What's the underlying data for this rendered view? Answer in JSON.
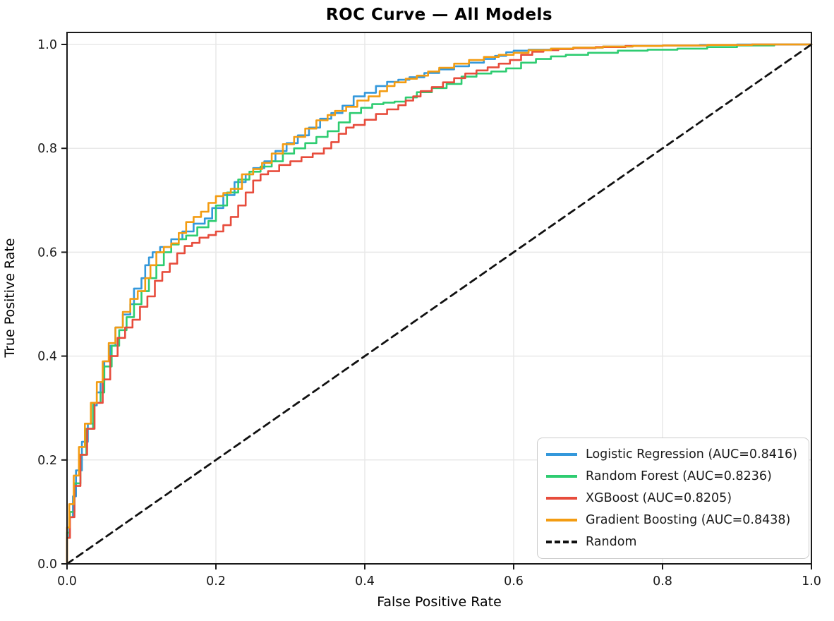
{
  "chart_data": {
    "type": "line",
    "title": "ROC Curve — All Models",
    "xlabel": "False Positive Rate",
    "ylabel": "True Positive Rate",
    "xlim": [
      0,
      1.0
    ],
    "ylim": [
      0,
      1.023
    ],
    "xtick_values": [
      0,
      0.2,
      0.4,
      0.6,
      0.8,
      1.0
    ],
    "ytick_values": [
      0,
      0.2,
      0.4,
      0.6,
      0.8,
      1.0
    ],
    "xtick_labels": [
      "0.0",
      "0.2",
      "0.4",
      "0.6",
      "0.8",
      "1.0"
    ],
    "ytick_labels": [
      "0.0",
      "0.2",
      "0.4",
      "0.6",
      "0.8",
      "1.0"
    ],
    "grid": true,
    "legend_position": "lower right",
    "series": [
      {
        "name": "Logistic Regression",
        "auc": 0.8416,
        "label": "Logistic Regression (AUC=0.8416)",
        "color": "#3498db",
        "style": "solid",
        "points": [
          [
            0,
            0
          ],
          [
            0.003,
            0.05
          ],
          [
            0.008,
            0.09
          ],
          [
            0.012,
            0.13
          ],
          [
            0.02,
            0.18
          ],
          [
            0.028,
            0.235
          ],
          [
            0.035,
            0.27
          ],
          [
            0.04,
            0.305
          ],
          [
            0.045,
            0.33
          ],
          [
            0.05,
            0.35
          ],
          [
            0.058,
            0.39
          ],
          [
            0.065,
            0.42
          ],
          [
            0.075,
            0.455
          ],
          [
            0.085,
            0.48
          ],
          [
            0.09,
            0.5
          ],
          [
            0.1,
            0.53
          ],
          [
            0.105,
            0.55
          ],
          [
            0.11,
            0.575
          ],
          [
            0.115,
            0.59
          ],
          [
            0.125,
            0.6
          ],
          [
            0.14,
            0.61
          ],
          [
            0.155,
            0.625
          ],
          [
            0.17,
            0.64
          ],
          [
            0.185,
            0.655
          ],
          [
            0.195,
            0.665
          ],
          [
            0.21,
            0.685
          ],
          [
            0.225,
            0.71
          ],
          [
            0.24,
            0.735
          ],
          [
            0.25,
            0.75
          ],
          [
            0.265,
            0.762
          ],
          [
            0.28,
            0.775
          ],
          [
            0.295,
            0.795
          ],
          [
            0.31,
            0.81
          ],
          [
            0.325,
            0.825
          ],
          [
            0.34,
            0.84
          ],
          [
            0.355,
            0.857
          ],
          [
            0.37,
            0.868
          ],
          [
            0.385,
            0.882
          ],
          [
            0.4,
            0.9
          ],
          [
            0.415,
            0.907
          ],
          [
            0.43,
            0.92
          ],
          [
            0.445,
            0.928
          ],
          [
            0.46,
            0.932
          ],
          [
            0.48,
            0.937
          ],
          [
            0.5,
            0.945
          ],
          [
            0.52,
            0.952
          ],
          [
            0.54,
            0.958
          ],
          [
            0.56,
            0.965
          ],
          [
            0.575,
            0.972
          ],
          [
            0.59,
            0.978
          ],
          [
            0.6,
            0.985
          ],
          [
            0.62,
            0.988
          ],
          [
            0.65,
            0.99
          ],
          [
            0.68,
            0.992
          ],
          [
            0.72,
            0.994
          ],
          [
            0.76,
            0.996
          ],
          [
            0.8,
            0.997
          ],
          [
            0.85,
            0.998
          ],
          [
            0.9,
            0.999
          ],
          [
            0.93,
            1.0
          ],
          [
            1.0,
            1.0
          ]
        ]
      },
      {
        "name": "Random Forest",
        "auc": 0.8236,
        "label": "Random Forest (AUC=0.8236)",
        "color": "#2ecc71",
        "style": "solid",
        "points": [
          [
            0,
            0
          ],
          [
            0.004,
            0.06
          ],
          [
            0.01,
            0.1
          ],
          [
            0.018,
            0.155
          ],
          [
            0.026,
            0.21
          ],
          [
            0.035,
            0.26
          ],
          [
            0.045,
            0.31
          ],
          [
            0.05,
            0.33
          ],
          [
            0.06,
            0.38
          ],
          [
            0.07,
            0.42
          ],
          [
            0.08,
            0.45
          ],
          [
            0.09,
            0.475
          ],
          [
            0.1,
            0.5
          ],
          [
            0.11,
            0.525
          ],
          [
            0.12,
            0.55
          ],
          [
            0.13,
            0.575
          ],
          [
            0.14,
            0.6
          ],
          [
            0.15,
            0.615
          ],
          [
            0.16,
            0.625
          ],
          [
            0.175,
            0.632
          ],
          [
            0.19,
            0.648
          ],
          [
            0.2,
            0.66
          ],
          [
            0.215,
            0.69
          ],
          [
            0.23,
            0.715
          ],
          [
            0.245,
            0.74
          ],
          [
            0.26,
            0.755
          ],
          [
            0.275,
            0.765
          ],
          [
            0.29,
            0.775
          ],
          [
            0.305,
            0.79
          ],
          [
            0.32,
            0.8
          ],
          [
            0.335,
            0.81
          ],
          [
            0.35,
            0.822
          ],
          [
            0.365,
            0.833
          ],
          [
            0.38,
            0.85
          ],
          [
            0.395,
            0.868
          ],
          [
            0.41,
            0.878
          ],
          [
            0.425,
            0.885
          ],
          [
            0.44,
            0.888
          ],
          [
            0.455,
            0.89
          ],
          [
            0.47,
            0.898
          ],
          [
            0.49,
            0.908
          ],
          [
            0.51,
            0.916
          ],
          [
            0.53,
            0.924
          ],
          [
            0.55,
            0.938
          ],
          [
            0.57,
            0.944
          ],
          [
            0.59,
            0.948
          ],
          [
            0.61,
            0.954
          ],
          [
            0.63,
            0.965
          ],
          [
            0.65,
            0.972
          ],
          [
            0.67,
            0.977
          ],
          [
            0.7,
            0.98
          ],
          [
            0.74,
            0.984
          ],
          [
            0.78,
            0.988
          ],
          [
            0.82,
            0.99
          ],
          [
            0.86,
            0.992
          ],
          [
            0.9,
            0.995
          ],
          [
            0.95,
            0.998
          ],
          [
            1.0,
            1.0
          ]
        ]
      },
      {
        "name": "XGBoost",
        "auc": 0.8205,
        "label": "XGBoost (AUC=0.8205)",
        "color": "#e74c3c",
        "style": "solid",
        "points": [
          [
            0,
            0
          ],
          [
            0.004,
            0.05
          ],
          [
            0.01,
            0.09
          ],
          [
            0.018,
            0.15
          ],
          [
            0.027,
            0.21
          ],
          [
            0.037,
            0.26
          ],
          [
            0.048,
            0.31
          ],
          [
            0.058,
            0.355
          ],
          [
            0.068,
            0.4
          ],
          [
            0.078,
            0.435
          ],
          [
            0.088,
            0.455
          ],
          [
            0.098,
            0.47
          ],
          [
            0.108,
            0.495
          ],
          [
            0.118,
            0.515
          ],
          [
            0.128,
            0.545
          ],
          [
            0.138,
            0.562
          ],
          [
            0.148,
            0.578
          ],
          [
            0.158,
            0.598
          ],
          [
            0.168,
            0.612
          ],
          [
            0.178,
            0.618
          ],
          [
            0.19,
            0.628
          ],
          [
            0.2,
            0.633
          ],
          [
            0.21,
            0.64
          ],
          [
            0.22,
            0.652
          ],
          [
            0.23,
            0.668
          ],
          [
            0.24,
            0.69
          ],
          [
            0.25,
            0.715
          ],
          [
            0.26,
            0.738
          ],
          [
            0.27,
            0.75
          ],
          [
            0.285,
            0.756
          ],
          [
            0.3,
            0.768
          ],
          [
            0.315,
            0.775
          ],
          [
            0.33,
            0.783
          ],
          [
            0.345,
            0.79
          ],
          [
            0.355,
            0.8
          ],
          [
            0.365,
            0.812
          ],
          [
            0.375,
            0.828
          ],
          [
            0.385,
            0.84
          ],
          [
            0.4,
            0.845
          ],
          [
            0.415,
            0.855
          ],
          [
            0.43,
            0.866
          ],
          [
            0.445,
            0.875
          ],
          [
            0.455,
            0.883
          ],
          [
            0.465,
            0.892
          ],
          [
            0.475,
            0.9
          ],
          [
            0.49,
            0.91
          ],
          [
            0.505,
            0.918
          ],
          [
            0.52,
            0.927
          ],
          [
            0.535,
            0.935
          ],
          [
            0.55,
            0.944
          ],
          [
            0.565,
            0.95
          ],
          [
            0.58,
            0.956
          ],
          [
            0.595,
            0.963
          ],
          [
            0.61,
            0.97
          ],
          [
            0.625,
            0.98
          ],
          [
            0.64,
            0.986
          ],
          [
            0.66,
            0.989
          ],
          [
            0.68,
            0.991
          ],
          [
            0.71,
            0.993
          ],
          [
            0.75,
            0.995
          ],
          [
            0.8,
            0.997
          ],
          [
            0.86,
            0.998
          ],
          [
            0.92,
            0.999
          ],
          [
            1.0,
            1.0
          ]
        ]
      },
      {
        "name": "Gradient Boosting",
        "auc": 0.8438,
        "label": "Gradient Boosting (AUC=0.8438)",
        "color": "#f39c12",
        "style": "solid",
        "points": [
          [
            0,
            0
          ],
          [
            0.003,
            0.07
          ],
          [
            0.009,
            0.115
          ],
          [
            0.016,
            0.17
          ],
          [
            0.024,
            0.225
          ],
          [
            0.032,
            0.27
          ],
          [
            0.04,
            0.31
          ],
          [
            0.048,
            0.35
          ],
          [
            0.056,
            0.39
          ],
          [
            0.065,
            0.425
          ],
          [
            0.075,
            0.455
          ],
          [
            0.085,
            0.485
          ],
          [
            0.095,
            0.51
          ],
          [
            0.105,
            0.525
          ],
          [
            0.112,
            0.55
          ],
          [
            0.12,
            0.575
          ],
          [
            0.13,
            0.6
          ],
          [
            0.14,
            0.61
          ],
          [
            0.15,
            0.617
          ],
          [
            0.16,
            0.637
          ],
          [
            0.17,
            0.658
          ],
          [
            0.18,
            0.668
          ],
          [
            0.19,
            0.678
          ],
          [
            0.2,
            0.695
          ],
          [
            0.21,
            0.708
          ],
          [
            0.22,
            0.714
          ],
          [
            0.235,
            0.722
          ],
          [
            0.25,
            0.75
          ],
          [
            0.262,
            0.76
          ],
          [
            0.275,
            0.772
          ],
          [
            0.29,
            0.79
          ],
          [
            0.305,
            0.808
          ],
          [
            0.32,
            0.822
          ],
          [
            0.335,
            0.838
          ],
          [
            0.35,
            0.854
          ],
          [
            0.36,
            0.864
          ],
          [
            0.375,
            0.872
          ],
          [
            0.39,
            0.88
          ],
          [
            0.405,
            0.892
          ],
          [
            0.42,
            0.9
          ],
          [
            0.43,
            0.91
          ],
          [
            0.44,
            0.92
          ],
          [
            0.455,
            0.927
          ],
          [
            0.47,
            0.934
          ],
          [
            0.485,
            0.94
          ],
          [
            0.5,
            0.948
          ],
          [
            0.52,
            0.955
          ],
          [
            0.54,
            0.963
          ],
          [
            0.56,
            0.97
          ],
          [
            0.58,
            0.976
          ],
          [
            0.6,
            0.98
          ],
          [
            0.62,
            0.984
          ],
          [
            0.65,
            0.989
          ],
          [
            0.68,
            0.992
          ],
          [
            0.72,
            0.994
          ],
          [
            0.76,
            0.996
          ],
          [
            0.8,
            0.997
          ],
          [
            0.86,
            0.998
          ],
          [
            0.92,
            0.999
          ],
          [
            0.97,
            1.0
          ],
          [
            1.0,
            1.0
          ]
        ]
      },
      {
        "name": "Random",
        "auc": null,
        "label": "Random",
        "color": "#111111",
        "style": "dashed",
        "points": [
          [
            0,
            0
          ],
          [
            1,
            1
          ]
        ]
      }
    ]
  },
  "colors": {
    "background": "#ffffff",
    "grid": "#e8e8e8",
    "spine": "#1a1a1a",
    "tick_text": "#1a1a1a"
  }
}
